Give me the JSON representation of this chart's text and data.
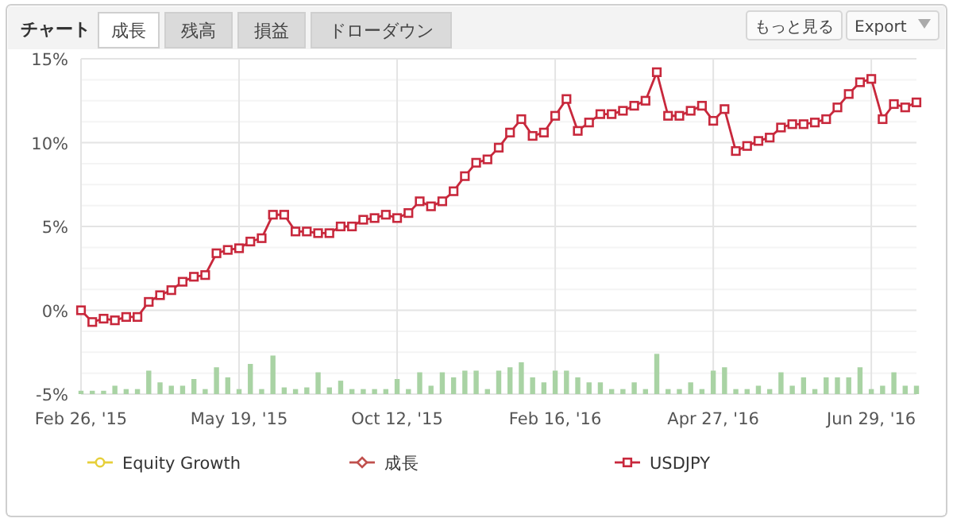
{
  "chart_data": {
    "type": "line",
    "annotations": [
      "チャート",
      "成長",
      "残高",
      "損益",
      "ドローダウン",
      "もっと見る",
      "Export"
    ],
    "categories": [
      "Feb 26, '15",
      null,
      null,
      null,
      null,
      null,
      null,
      null,
      null,
      null,
      null,
      null,
      null,
      null,
      "May 19, '15",
      null,
      null,
      null,
      null,
      null,
      null,
      null,
      null,
      null,
      null,
      null,
      null,
      null,
      "Oct 12, '15",
      null,
      null,
      null,
      null,
      null,
      null,
      null,
      null,
      null,
      null,
      null,
      null,
      null,
      "Feb 16, '16",
      null,
      null,
      null,
      null,
      null,
      null,
      null,
      null,
      null,
      null,
      null,
      null,
      null,
      "Apr 27, '16",
      null,
      null,
      null,
      null,
      null,
      null,
      null,
      null,
      null,
      null,
      null,
      null,
      null,
      "Jun 29, '16",
      null,
      null,
      null,
      null
    ],
    "series": [
      {
        "type": "bar",
        "color": "#a9d3a4",
        "base": [
          -5,
          -5,
          -5,
          -5,
          -5,
          -5,
          -5,
          -5,
          -5,
          -5,
          -5,
          -5,
          -5,
          -5,
          -5,
          -5,
          -5,
          -5,
          -5,
          -5,
          -5,
          -5,
          -5,
          -5,
          -5,
          -5,
          -5,
          -5,
          -5,
          -5,
          -5,
          -5,
          -5,
          -5,
          -5,
          -5,
          -5,
          -5,
          -5,
          -5,
          -5,
          -5,
          -5,
          -5,
          -5,
          -5,
          -5,
          -5,
          -5,
          -5,
          -5,
          -5,
          -5,
          -5,
          -5,
          -5,
          -5,
          -5,
          -5,
          -5,
          -5,
          -5,
          -5,
          -5,
          -5,
          -5,
          -5,
          -5,
          -5,
          -5,
          -5,
          -5,
          -5,
          -5,
          -5
        ],
        "values": [
          0.2,
          0.2,
          0.2,
          0.5,
          0.3,
          0.3,
          1.4,
          0.7,
          0.5,
          0.5,
          0.9,
          0.3,
          1.6,
          1.0,
          0.3,
          1.8,
          0.3,
          2.3,
          0.4,
          0.3,
          0.4,
          1.3,
          0.4,
          0.8,
          0.3,
          0.3,
          0.3,
          0.3,
          0.9,
          0.3,
          1.3,
          0.5,
          1.3,
          1.0,
          1.4,
          1.4,
          0.3,
          1.4,
          1.6,
          1.9,
          1.0,
          0.7,
          1.4,
          1.4,
          1.0,
          0.7,
          0.7,
          0.3,
          0.3,
          0.7,
          0.3,
          2.4,
          0.3,
          0.3,
          0.7,
          0.3,
          1.4,
          1.6,
          0.3,
          0.3,
          0.5,
          0.3,
          1.3,
          0.5,
          1.0,
          0.3,
          1.0,
          1.0,
          1.0,
          1.6,
          0.3,
          0.5,
          1.3,
          0.5,
          0.5
        ]
      },
      {
        "name": "Equity Growth",
        "color": "#e6cf3a",
        "marker": "circle",
        "values": [
          null,
          null,
          null,
          null,
          null,
          null,
          null,
          null,
          null,
          null,
          null,
          null,
          null,
          null,
          null,
          null,
          null,
          null,
          null,
          null,
          null,
          null,
          null,
          null,
          null,
          null,
          null,
          null,
          null,
          null,
          null,
          null,
          null,
          null,
          null,
          null,
          null,
          null,
          null,
          null,
          null,
          null,
          null,
          null,
          null,
          null,
          null,
          null,
          null,
          null,
          null,
          null,
          null,
          null,
          null,
          null,
          null,
          null,
          null,
          null,
          null,
          null,
          null,
          null,
          null,
          null,
          null,
          null,
          null,
          null,
          null,
          null,
          null,
          null,
          null
        ]
      },
      {
        "name": "成長",
        "color": "#c0504d",
        "marker": "diamond",
        "values": [
          null,
          null,
          null,
          null,
          null,
          null,
          null,
          null,
          null,
          null,
          null,
          null,
          null,
          null,
          null,
          null,
          null,
          null,
          null,
          null,
          null,
          null,
          null,
          null,
          null,
          null,
          null,
          null,
          null,
          null,
          null,
          null,
          null,
          null,
          null,
          null,
          null,
          null,
          null,
          null,
          null,
          null,
          null,
          null,
          null,
          null,
          null,
          null,
          null,
          null,
          null,
          null,
          null,
          null,
          null,
          null,
          null,
          null,
          null,
          null,
          null,
          null,
          null,
          null,
          null,
          null,
          null,
          null,
          null,
          null,
          null,
          null,
          null,
          null,
          null
        ]
      },
      {
        "name": "USDJPY",
        "color": "#c8283c",
        "marker": "square",
        "values": [
          0,
          -0.7,
          -0.5,
          -0.6,
          -0.4,
          -0.4,
          0.5,
          0.9,
          1.2,
          1.7,
          2.0,
          2.1,
          3.4,
          3.6,
          3.7,
          4.1,
          4.3,
          5.7,
          5.7,
          4.7,
          4.7,
          4.6,
          4.6,
          5.0,
          5.0,
          5.4,
          5.5,
          5.7,
          5.5,
          5.8,
          6.5,
          6.2,
          6.5,
          7.1,
          8.0,
          8.8,
          9.0,
          9.7,
          10.6,
          11.4,
          10.4,
          10.6,
          11.6,
          12.6,
          10.7,
          11.2,
          11.7,
          11.7,
          11.9,
          12.2,
          12.5,
          14.2,
          11.6,
          11.6,
          11.9,
          12.2,
          11.3,
          12.0,
          9.5,
          9.8,
          10.1,
          10.3,
          10.9,
          11.1,
          11.1,
          11.2,
          11.4,
          12.1,
          12.9,
          13.6,
          13.8,
          11.4,
          12.3,
          12.1,
          12.4
        ]
      }
    ],
    "ylim": [
      -5,
      15
    ],
    "yticks": [
      {
        "value": -5,
        "label": "-5%"
      },
      {
        "value": 0,
        "label": "0%"
      },
      {
        "value": 5,
        "label": "5%"
      },
      {
        "value": 10,
        "label": "10%"
      },
      {
        "value": 15,
        "label": "15%"
      }
    ],
    "grid": true,
    "legend": "bottom"
  }
}
